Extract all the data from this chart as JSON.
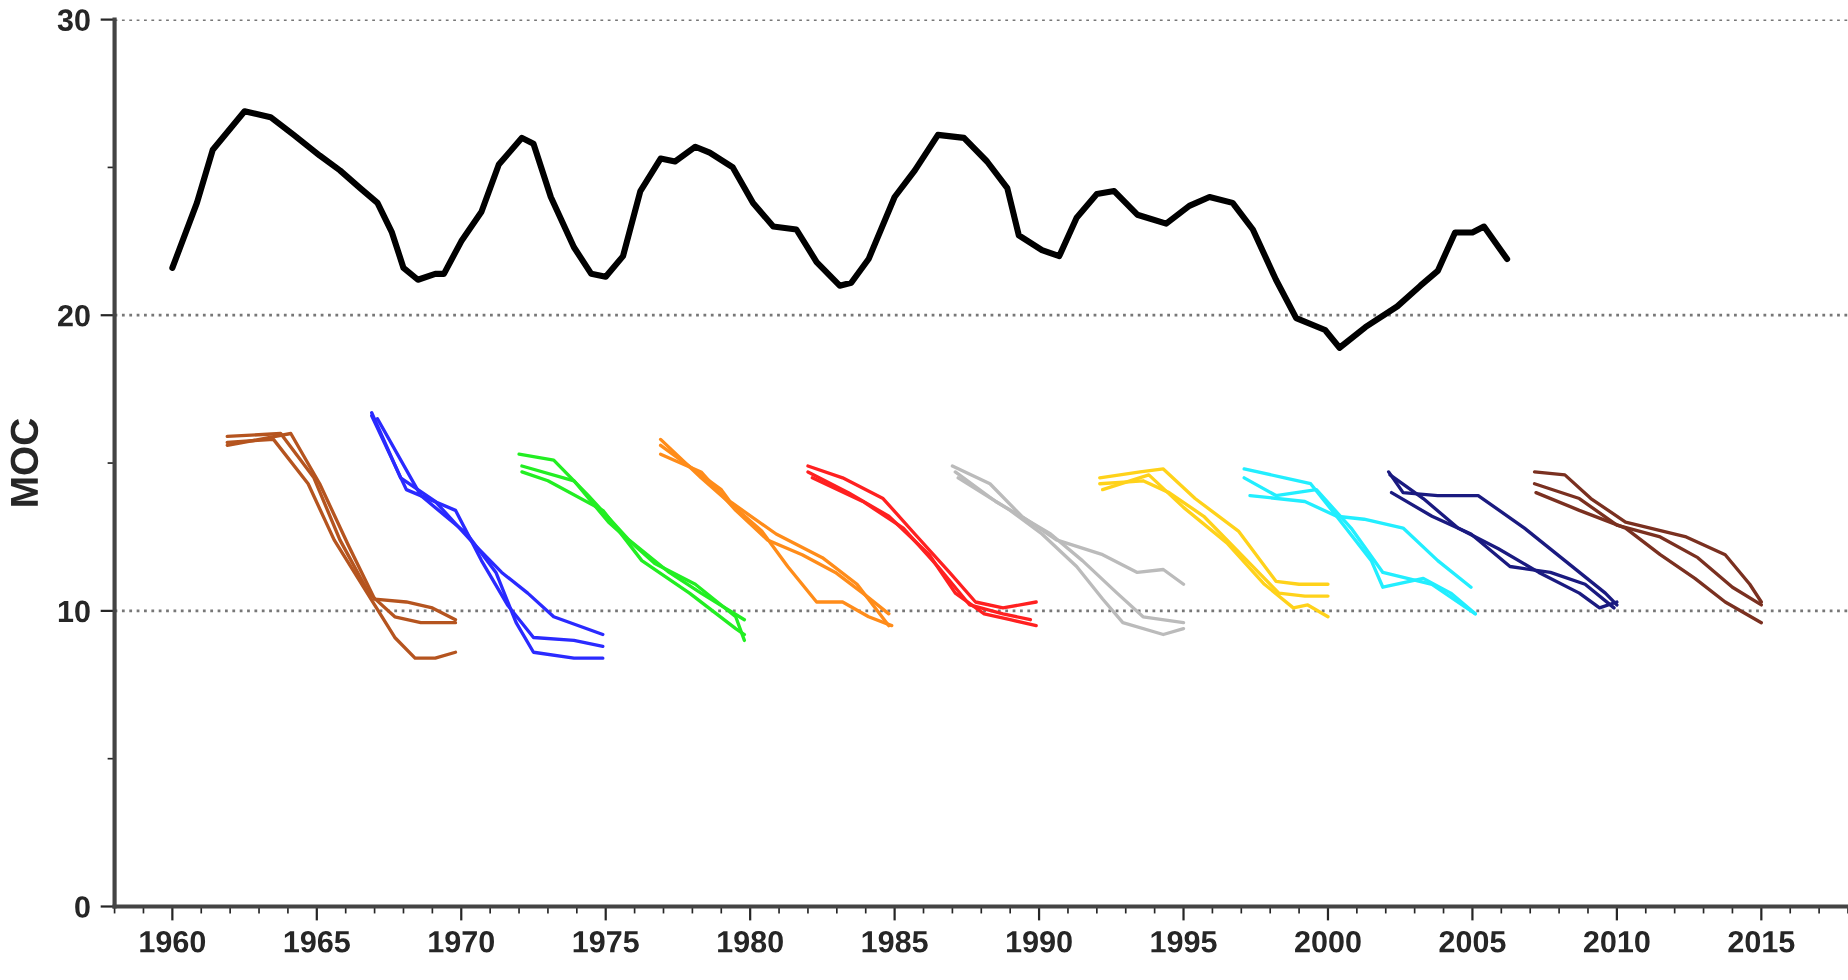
{
  "chart_data": {
    "type": "line",
    "ylabel": "MOC",
    "xlim": [
      1958,
      2018
    ],
    "ylim": [
      0,
      30
    ],
    "xticks": [
      1960,
      1965,
      1970,
      1975,
      1980,
      1985,
      1990,
      1995,
      2000,
      2005,
      2010,
      2015
    ],
    "yticks": [
      0,
      10,
      20,
      30
    ],
    "grid": "y",
    "legend": false,
    "marker": "none",
    "line_style": "solid",
    "series": [
      {
        "color": "#000000",
        "x": [
          1960.0,
          1960.85,
          1961.4,
          1962.5,
          1963.4,
          1964.2,
          1965.1,
          1965.8,
          1966.5,
          1967.1,
          1967.6,
          1968.0,
          1968.5,
          1969.1,
          1969.4,
          1970.0,
          1970.7,
          1971.3,
          1972.1,
          1972.5,
          1973.1,
          1973.9,
          1974.5,
          1975.0,
          1975.6,
          1976.2,
          1976.9,
          1977.4,
          1978.1,
          1978.6,
          1979.4,
          1980.1,
          1980.8,
          1981.6,
          1982.3,
          1983.1,
          1983.5,
          1984.1,
          1985.0,
          1985.7,
          1986.5,
          1987.4,
          1988.2,
          1988.9,
          1989.3,
          1990.1,
          1990.7,
          1991.3,
          1992.0,
          1992.6,
          1993.4,
          1994.4,
          1995.2,
          1995.9,
          1996.7,
          1997.4,
          1998.2,
          1998.9,
          1999.9,
          2000.4,
          2001.3,
          2002.4,
          2003.2,
          2003.8,
          2004.4,
          2005.0,
          2005.4,
          2006.2
        ],
        "values": [
          21.6,
          23.8,
          25.6,
          26.9,
          26.7,
          26.1,
          25.4,
          24.9,
          24.3,
          23.8,
          22.8,
          21.6,
          21.2,
          21.4,
          21.4,
          22.5,
          23.5,
          25.1,
          26.0,
          25.8,
          24.0,
          22.3,
          21.4,
          21.3,
          22.0,
          24.2,
          25.3,
          25.2,
          25.7,
          25.5,
          25.0,
          23.8,
          23.0,
          22.9,
          21.8,
          21.0,
          21.1,
          21.9,
          24.0,
          24.9,
          26.1,
          26.0,
          25.2,
          24.3,
          22.7,
          22.2,
          22.0,
          23.3,
          24.1,
          24.2,
          23.4,
          23.1,
          23.7,
          24.0,
          23.8,
          22.9,
          21.2,
          19.9,
          19.5,
          18.9,
          19.6,
          20.3,
          21.0,
          21.5,
          22.8,
          22.8,
          23.0,
          21.9
        ]
      },
      {
        "color": "#b5541f",
        "x": [
          1961.9,
          1964.1,
          1965.1,
          1966.1,
          1967.0,
          1968.1,
          1969.0,
          1969.8
        ],
        "values": [
          15.6,
          16.0,
          14.3,
          12.2,
          10.4,
          10.3,
          10.1,
          9.7
        ]
      },
      {
        "color": "#b5541f",
        "x": [
          1961.9,
          1963.75,
          1964.9,
          1965.8,
          1966.8,
          1967.7,
          1968.6,
          1969.8
        ],
        "values": [
          15.9,
          16.0,
          14.5,
          12.4,
          10.6,
          9.8,
          9.6,
          9.6
        ]
      },
      {
        "color": "#b5541f",
        "x": [
          1961.9,
          1963.5,
          1964.7,
          1965.6,
          1967.0,
          1967.7,
          1968.4,
          1969.1,
          1969.8
        ],
        "values": [
          15.7,
          15.8,
          14.3,
          12.4,
          10.2,
          9.1,
          8.4,
          8.4,
          8.6
        ]
      },
      {
        "color": "#2a2aff",
        "x": [
          1966.9,
          1967.9,
          1969.1,
          1970.5,
          1971.4,
          1972.3,
          1973.2,
          1974.9
        ],
        "values": [
          16.7,
          14.5,
          13.7,
          12.2,
          11.3,
          10.6,
          9.8,
          9.2
        ]
      },
      {
        "color": "#2a2aff",
        "x": [
          1966.9,
          1968.1,
          1969.8,
          1970.7,
          1971.6,
          1972.5,
          1973.9,
          1974.9
        ],
        "values": [
          16.6,
          14.1,
          13.4,
          11.7,
          10.2,
          9.1,
          9.0,
          8.8
        ]
      },
      {
        "color": "#2a2aff",
        "x": [
          1967.1,
          1968.6,
          1970.2,
          1971.2,
          1971.9,
          1972.5,
          1973.9,
          1974.9
        ],
        "values": [
          16.5,
          13.9,
          12.6,
          11.3,
          9.6,
          8.6,
          8.4,
          8.4
        ]
      },
      {
        "color": "#22ee22",
        "x": [
          1972.0,
          1973.2,
          1974.4,
          1975.8,
          1977.2,
          1978.3,
          1979.8
        ],
        "values": [
          15.3,
          15.1,
          13.9,
          12.4,
          11.3,
          10.6,
          9.7
        ]
      },
      {
        "color": "#22ee22",
        "x": [
          1972.1,
          1973.9,
          1975.1,
          1976.7,
          1978.1,
          1979.5,
          1979.8
        ],
        "values": [
          14.9,
          14.4,
          13.0,
          11.6,
          10.9,
          9.8,
          9.0
        ]
      },
      {
        "color": "#22ee22",
        "x": [
          1972.1,
          1973.0,
          1974.9,
          1976.25,
          1977.9,
          1979.5,
          1979.8
        ],
        "values": [
          14.7,
          14.4,
          13.4,
          11.7,
          10.6,
          9.4,
          9.2
        ]
      },
      {
        "color": "#ff8c1a",
        "x": [
          1976.9,
          1978.3,
          1980.4,
          1981.3,
          1982.3,
          1983.2,
          1984.1,
          1984.9
        ],
        "values": [
          15.8,
          14.5,
          12.7,
          11.5,
          10.3,
          10.3,
          9.8,
          9.5
        ]
      },
      {
        "color": "#ff8c1a",
        "x": [
          1976.9,
          1979.0,
          1979.3,
          1980.9,
          1982.5,
          1983.7,
          1984.8
        ],
        "values": [
          15.6,
          14.1,
          13.7,
          12.6,
          11.8,
          10.9,
          9.5
        ]
      },
      {
        "color": "#ff8c1a",
        "x": [
          1976.9,
          1978.3,
          1979.5,
          1980.6,
          1981.8,
          1982.95,
          1983.9,
          1984.8
        ],
        "values": [
          15.3,
          14.7,
          13.4,
          12.4,
          11.9,
          11.3,
          10.6,
          9.9
        ]
      },
      {
        "color": "#ff2020",
        "x": [
          1982.0,
          1983.2,
          1984.6,
          1985.7,
          1986.9,
          1987.8,
          1988.75,
          1989.9
        ],
        "values": [
          14.9,
          14.5,
          13.8,
          12.6,
          11.3,
          10.3,
          10.1,
          10.3
        ]
      },
      {
        "color": "#ff2020",
        "x": [
          1982.0,
          1983.4,
          1984.8,
          1986.2,
          1987.1,
          1988.1,
          1989.0,
          1989.9
        ],
        "values": [
          14.7,
          14.0,
          13.2,
          11.9,
          10.6,
          9.9,
          9.7,
          9.5
        ]
      },
      {
        "color": "#ff2020",
        "x": [
          1982.15,
          1983.9,
          1985.3,
          1986.5,
          1987.6,
          1988.75,
          1989.7
        ],
        "values": [
          14.5,
          13.7,
          12.8,
          11.5,
          10.2,
          9.9,
          9.7
        ]
      },
      {
        "color": "#bbbbbb",
        "x": [
          1987.0,
          1988.3,
          1989.4,
          1990.6,
          1992.2,
          1993.4,
          1994.3,
          1995.0
        ],
        "values": [
          14.9,
          14.3,
          13.2,
          12.4,
          11.9,
          11.3,
          11.4,
          10.9
        ]
      },
      {
        "color": "#bbbbbb",
        "x": [
          1987.1,
          1988.5,
          1990.4,
          1991.5,
          1992.7,
          1993.6,
          1995.0
        ],
        "values": [
          14.7,
          13.7,
          12.6,
          11.7,
          10.6,
          9.8,
          9.6
        ]
      },
      {
        "color": "#bbbbbb",
        "x": [
          1987.2,
          1989.0,
          1990.1,
          1991.3,
          1992.2,
          1992.9,
          1994.3,
          1995.0
        ],
        "values": [
          14.5,
          13.4,
          12.6,
          11.5,
          10.4,
          9.6,
          9.2,
          9.4
        ]
      },
      {
        "color": "#ffd21a",
        "x": [
          1992.1,
          1993.5,
          1994.3,
          1995.4,
          1996.9,
          1998.2,
          1999.0,
          2000.0
        ],
        "values": [
          14.5,
          14.7,
          14.8,
          13.8,
          12.7,
          11.0,
          10.9,
          10.9
        ]
      },
      {
        "color": "#ffd21a",
        "x": [
          1992.1,
          1993.6,
          1994.5,
          1995.7,
          1997.1,
          1998.3,
          1999.2,
          2000.0
        ],
        "values": [
          14.3,
          14.4,
          14.0,
          13.2,
          11.8,
          10.6,
          10.5,
          10.5
        ]
      },
      {
        "color": "#ffd21a",
        "x": [
          1992.2,
          1993.8,
          1995.0,
          1996.5,
          1997.8,
          1998.8,
          1999.3,
          2000.0
        ],
        "values": [
          14.1,
          14.6,
          13.5,
          12.3,
          10.9,
          10.1,
          10.2,
          9.8
        ]
      },
      {
        "color": "#22eeff",
        "x": [
          1997.1,
          1998.5,
          1999.4,
          2000.3,
          2001.25,
          2002.6,
          2003.8,
          2004.95
        ],
        "values": [
          14.8,
          14.5,
          14.3,
          13.2,
          13.1,
          12.8,
          11.7,
          10.8
        ]
      },
      {
        "color": "#22eeff",
        "x": [
          1997.1,
          1998.2,
          1999.6,
          2000.8,
          2001.9,
          2003.6,
          2005.1
        ],
        "values": [
          14.5,
          13.9,
          14.1,
          12.8,
          11.3,
          10.9,
          9.9
        ]
      },
      {
        "color": "#22eeff",
        "x": [
          1997.3,
          1999.2,
          2000.3,
          2001.5,
          2001.9,
          2003.3,
          2004.25,
          2005.1
        ],
        "values": [
          13.9,
          13.7,
          13.2,
          11.7,
          10.8,
          11.1,
          10.6,
          9.9
        ]
      },
      {
        "color": "#1a1a80",
        "x": [
          2002.1,
          2002.6,
          2003.8,
          2005.2,
          2006.8,
          2008.2,
          2009.6,
          2010.0
        ],
        "values": [
          14.7,
          14.0,
          13.9,
          13.9,
          12.8,
          11.7,
          10.6,
          10.2
        ]
      },
      {
        "color": "#1a1a80",
        "x": [
          2002.2,
          2003.6,
          2004.95,
          2006.3,
          2007.7,
          2008.9,
          2009.9
        ],
        "values": [
          14.0,
          13.2,
          12.6,
          11.5,
          11.3,
          10.9,
          10.1
        ]
      },
      {
        "color": "#1a1a80",
        "x": [
          2002.15,
          2003.3,
          2004.5,
          2005.9,
          2007.3,
          2008.7,
          2009.4,
          2010.0
        ],
        "values": [
          14.6,
          13.8,
          12.8,
          12.1,
          11.3,
          10.6,
          10.1,
          10.3
        ]
      },
      {
        "color": "#7a3020",
        "x": [
          2007.15,
          2008.2,
          2009.1,
          2010.3,
          2012.4,
          2013.75,
          2014.6,
          2015.0
        ],
        "values": [
          14.7,
          14.6,
          13.8,
          13.0,
          12.5,
          11.9,
          10.9,
          10.3
        ]
      },
      {
        "color": "#7a3020",
        "x": [
          2007.15,
          2008.7,
          2010.0,
          2011.5,
          2012.8,
          2014.0,
          2015.0
        ],
        "values": [
          14.3,
          13.8,
          12.9,
          12.5,
          11.8,
          10.8,
          10.2
        ]
      },
      {
        "color": "#7a3020",
        "x": [
          2007.2,
          2008.7,
          2010.3,
          2011.5,
          2012.7,
          2013.75,
          2015.0
        ],
        "values": [
          14.0,
          13.4,
          12.8,
          11.9,
          11.1,
          10.3,
          9.6
        ]
      }
    ]
  }
}
